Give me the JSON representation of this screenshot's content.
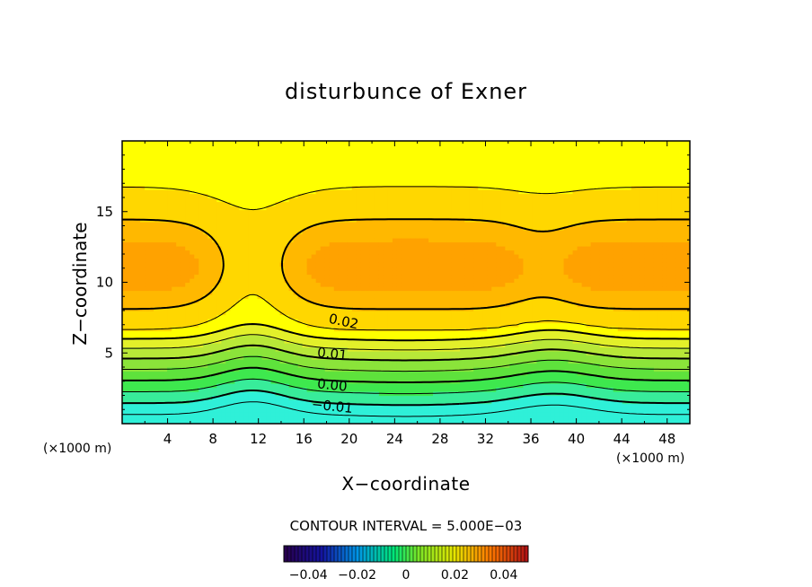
{
  "chart_data": {
    "type": "contour",
    "title": "disturbunce of Exner",
    "xlabel": "X−coordinate",
    "ylabel": "Z−coordinate",
    "x_unit_left": "(×1000 m)",
    "x_unit_right": "(×1000 m)",
    "xlim": [
      0,
      50
    ],
    "ylim": [
      0,
      20
    ],
    "xticks": [
      "4",
      "8",
      "12",
      "16",
      "20",
      "24",
      "28",
      "32",
      "36",
      "40",
      "44",
      "48"
    ],
    "yticks": [
      "5",
      "10",
      "15"
    ],
    "contour_labels": [
      "0.02",
      "0.01",
      "0.00",
      "−0.01"
    ],
    "contour_interval_text": "CONTOUR INTERVAL = 5.000E−03",
    "colorbar": {
      "range": [
        -0.05,
        0.05
      ],
      "tick_labels": [
        "−0.04",
        "−0.02",
        "0",
        "0.02",
        "0.04"
      ]
    },
    "bands": [
      {
        "level": -0.015,
        "color": "#2ff0d8"
      },
      {
        "level": -0.01,
        "color": "#38ec9a"
      },
      {
        "level": -0.005,
        "color": "#3ee84e"
      },
      {
        "level": 0.0,
        "color": "#5ee23c"
      },
      {
        "level": 0.005,
        "color": "#8be43a"
      },
      {
        "level": 0.01,
        "color": "#b8e838"
      },
      {
        "level": 0.015,
        "color": "#e3f02a"
      },
      {
        "level": 0.02,
        "color": "#ffff00"
      },
      {
        "level": 0.025,
        "color": "#ffd700"
      },
      {
        "level": 0.03,
        "color": "#ffb800"
      },
      {
        "level": 0.035,
        "color": "#ffa200"
      }
    ]
  }
}
